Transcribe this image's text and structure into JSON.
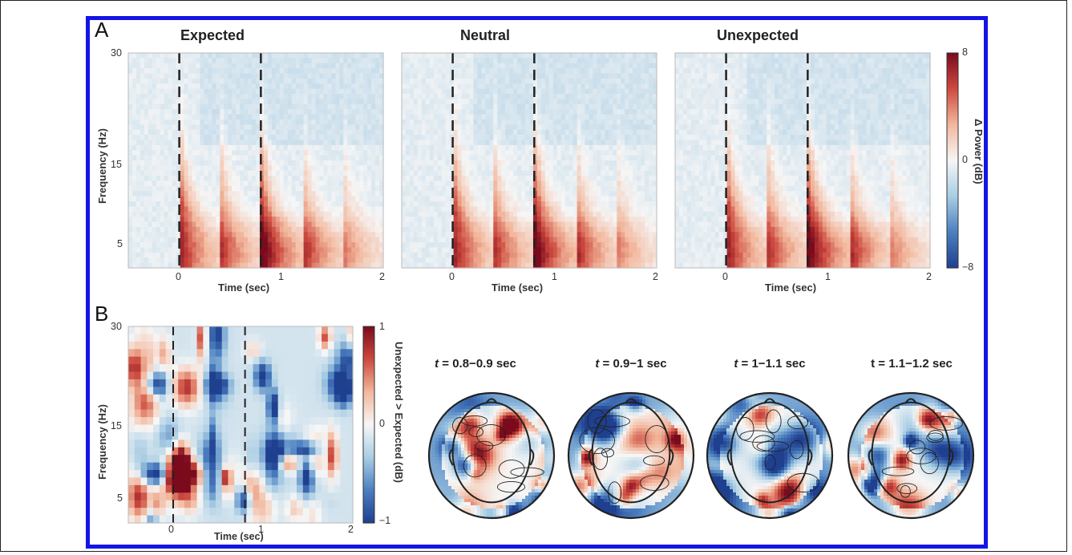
{
  "panel_a": {
    "letter": "A",
    "plots": [
      {
        "title": "Expected"
      },
      {
        "title": "Neutral"
      },
      {
        "title": "Unexpected"
      }
    ],
    "xlabel": "Time (sec)",
    "ylabel": "Frequency (Hz)",
    "xticks": [
      "0",
      "1",
      "2"
    ],
    "yticks": [
      "30",
      "15",
      "5"
    ],
    "colorbar": {
      "label": "Δ Power (dB)",
      "ticks": [
        "8",
        "0",
        "−8"
      ]
    }
  },
  "panel_b": {
    "letter": "B",
    "xlabel": "Time (sec)",
    "ylabel": "Frequency (Hz)",
    "xticks": [
      "0",
      "1",
      "2"
    ],
    "yticks": [
      "30",
      "15",
      "5"
    ],
    "colorbar": {
      "label": "Unexpected > Expected (dB)",
      "ticks": [
        "1",
        "0",
        "−1"
      ]
    },
    "topo_titles": [
      {
        "italic": "t",
        "rest": " = 0.8−0.9 sec"
      },
      {
        "italic": "t",
        "rest": " = 0.9−1 sec"
      },
      {
        "italic": "t",
        "rest": " = 1−1.1 sec"
      },
      {
        "italic": "",
        "rest": "t = 1.1−1.2 sec"
      }
    ]
  },
  "chart_data": [
    {
      "type": "heatmap",
      "title": "Expected",
      "xlabel": "Time (sec)",
      "ylabel": "Frequency (Hz)",
      "xlim": [
        -0.5,
        2
      ],
      "ylim": [
        2,
        30
      ],
      "clim": [
        -8,
        8
      ],
      "colorbar_label": "Δ Power (dB)",
      "event_lines_x": [
        0,
        0.8
      ],
      "bursts_onset_sec": [
        0,
        0.4,
        0.8,
        1.2,
        1.6
      ],
      "burst_peak_dB": [
        8,
        5,
        8,
        5,
        3
      ]
    },
    {
      "type": "heatmap",
      "title": "Neutral",
      "xlabel": "Time (sec)",
      "ylabel": "Frequency (Hz)",
      "xlim": [
        -0.5,
        2
      ],
      "ylim": [
        2,
        30
      ],
      "clim": [
        -8,
        8
      ],
      "colorbar_label": "Δ Power (dB)",
      "event_lines_x": [
        0,
        0.8
      ],
      "bursts_onset_sec": [
        0,
        0.4,
        0.8,
        1.2,
        1.6
      ],
      "burst_peak_dB": [
        8,
        5,
        8,
        5,
        3
      ]
    },
    {
      "type": "heatmap",
      "title": "Unexpected",
      "xlabel": "Time (sec)",
      "ylabel": "Frequency (Hz)",
      "xlim": [
        -0.5,
        2
      ],
      "ylim": [
        2,
        30
      ],
      "clim": [
        -8,
        8
      ],
      "colorbar_label": "Δ Power (dB)",
      "event_lines_x": [
        0,
        0.8
      ],
      "bursts_onset_sec": [
        0,
        0.4,
        0.8,
        1.2,
        1.6
      ],
      "burst_peak_dB": [
        8,
        5,
        8,
        5,
        3
      ]
    },
    {
      "type": "heatmap",
      "title": "",
      "xlabel": "Time (sec)",
      "ylabel": "Frequency (Hz)",
      "xlim": [
        -0.5,
        2
      ],
      "ylim": [
        2,
        30
      ],
      "clim": [
        -1,
        1
      ],
      "colorbar_label": "Unexpected > Expected (dB)",
      "event_lines_x": [
        0,
        0.8
      ]
    }
  ],
  "colors": {
    "frame": "#1414e6",
    "cmap": [
      "#1f3f8f",
      "#4b7fc0",
      "#a9cde4",
      "#f6f6f6",
      "#f2b79c",
      "#cd4a3f",
      "#7a0b1d"
    ]
  }
}
